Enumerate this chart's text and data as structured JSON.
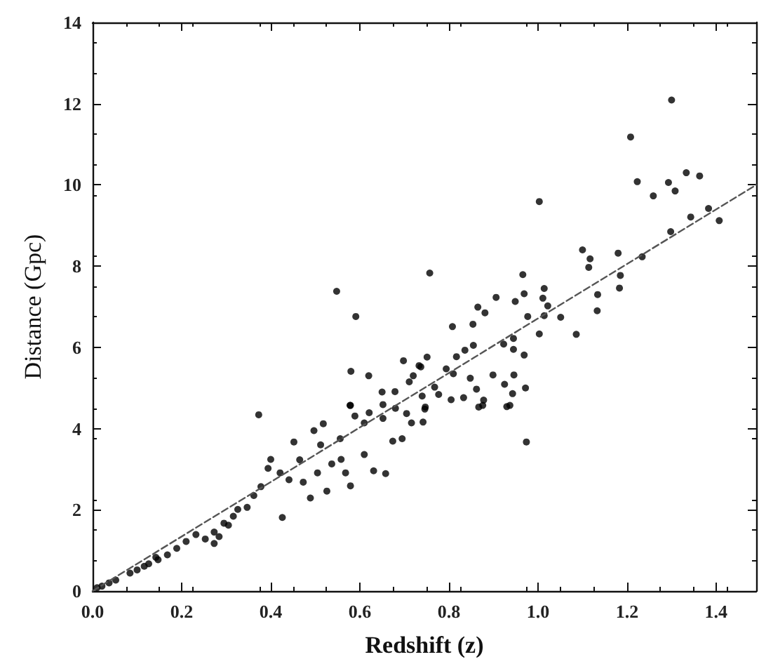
{
  "chart_data": {
    "type": "scatter",
    "xlabel": "Redshift (z)",
    "ylabel": "Distance (Gpc)",
    "xlim": [
      0,
      1.49
    ],
    "ylim": [
      0,
      14
    ],
    "xticks": [
      {
        "value": 0,
        "label": "0.0"
      },
      0.2,
      0.4,
      0.6,
      0.8,
      {
        "value": 1,
        "label": "1.0"
      },
      1.2,
      1.4
    ],
    "yticks": [
      0,
      2,
      4,
      6,
      8,
      10,
      12,
      14
    ],
    "grid": false,
    "marker": "circle",
    "series": [
      {
        "color": "#000000",
        "x": [
          0.01,
          0.021,
          0.037,
          0.052,
          0.084,
          0.1,
          0.116,
          0.126,
          0.142,
          0.147,
          0.168,
          0.189,
          0.21,
          0.232,
          0.253,
          0.273,
          0.273,
          0.284,
          0.295,
          0.305,
          0.316,
          0.326,
          0.347,
          0.362,
          0.373,
          0.378,
          0.394,
          0.4,
          0.421,
          0.426,
          0.441,
          0.452,
          0.465,
          0.473,
          0.489,
          0.497,
          0.505,
          0.512,
          0.518,
          0.526,
          0.537,
          0.548,
          0.556,
          0.558,
          0.568,
          0.578,
          0.579,
          0.579,
          0.58,
          0.589,
          0.591,
          0.61,
          0.61,
          0.62,
          0.621,
          0.631,
          0.65,
          0.652,
          0.652,
          0.658,
          0.674,
          0.679,
          0.68,
          0.695,
          0.698,
          0.705,
          0.711,
          0.716,
          0.72,
          0.733,
          0.737,
          0.74,
          0.742,
          0.746,
          0.747,
          0.751,
          0.757,
          0.768,
          0.777,
          0.794,
          0.805,
          0.808,
          0.81,
          0.817,
          0.833,
          0.836,
          0.848,
          0.854,
          0.855,
          0.862,
          0.865,
          0.867,
          0.876,
          0.878,
          0.881,
          0.899,
          0.906,
          0.923,
          0.925,
          0.93,
          0.937,
          0.943,
          0.945,
          0.945,
          0.946,
          0.949,
          0.966,
          0.969,
          0.969,
          0.972,
          0.974,
          0.977,
          1.003,
          1.003,
          1.011,
          1.014,
          1.014,
          1.022,
          1.051,
          1.086,
          1.1,
          1.114,
          1.117,
          1.133,
          1.134,
          1.18,
          1.183,
          1.185,
          1.208,
          1.223,
          1.234,
          1.259,
          1.293,
          1.298,
          1.3,
          1.308,
          1.333,
          1.343,
          1.363,
          1.383,
          1.407
        ],
        "values": [
          0.08,
          0.12,
          0.2,
          0.27,
          0.44,
          0.52,
          0.61,
          0.67,
          0.83,
          0.77,
          0.89,
          1.05,
          1.22,
          1.39,
          1.28,
          1.45,
          1.17,
          1.34,
          1.67,
          1.62,
          1.84,
          2.01,
          2.06,
          2.35,
          4.34,
          2.57,
          3.02,
          3.24,
          2.91,
          1.81,
          2.74,
          3.67,
          3.23,
          2.68,
          2.29,
          3.95,
          2.91,
          3.6,
          4.12,
          2.46,
          3.13,
          7.38,
          3.75,
          3.24,
          2.91,
          4.57,
          2.59,
          4.57,
          5.41,
          4.31,
          6.76,
          3.36,
          4.14,
          5.3,
          4.39,
          2.96,
          4.9,
          4.25,
          4.59,
          2.89,
          3.69,
          4.91,
          4.5,
          3.75,
          5.67,
          4.37,
          5.15,
          4.14,
          5.3,
          5.55,
          5.52,
          4.8,
          4.16,
          4.48,
          4.53,
          5.76,
          7.83,
          5.02,
          4.84,
          5.47,
          4.71,
          6.51,
          5.35,
          5.77,
          4.76,
          5.93,
          5.24,
          6.57,
          6.05,
          4.97,
          6.99,
          4.53,
          4.57,
          4.7,
          6.85,
          5.32,
          7.23,
          6.08,
          5.09,
          4.54,
          4.57,
          4.86,
          6.22,
          5.95,
          5.32,
          7.13,
          7.79,
          5.81,
          7.32,
          5.0,
          3.67,
          6.76,
          9.59,
          6.33,
          7.21,
          7.45,
          6.78,
          7.02,
          6.74,
          6.32,
          8.4,
          7.97,
          8.18,
          6.9,
          7.3,
          8.32,
          7.46,
          7.77,
          11.18,
          10.08,
          8.23,
          9.73,
          10.06,
          8.85,
          12.09,
          9.85,
          10.3,
          9.21,
          10.22,
          9.42,
          9.12
        ]
      },
      {
        "type": "line",
        "color": "#555555",
        "line_style": "dashed",
        "marker": "none",
        "x": [
          0,
          1.49
        ],
        "values": [
          0,
          10.0
        ]
      }
    ]
  }
}
